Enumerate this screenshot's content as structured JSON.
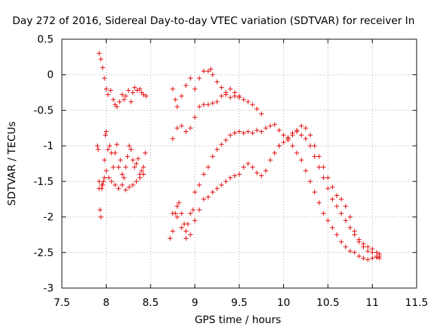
{
  "chart_data": {
    "type": "scatter",
    "title": "Day 272 of 2016, Sidereal Day-to-day VTEC variation (SDTVAR) for receiver In",
    "xlabel": "GPS time / hours",
    "ylabel": "SDTVAR / TECUs",
    "xlim": [
      7.5,
      11.5
    ],
    "ylim": [
      -3,
      0.5
    ],
    "xticks": [
      "7.5",
      "8",
      "8.5",
      "9",
      "9.5",
      "10",
      "10.5",
      "11",
      "11.5"
    ],
    "yticks": [
      "0.5",
      "0",
      "-0.5",
      "-1",
      "-1.5",
      "-2",
      "-2.5",
      "-3"
    ],
    "grid": true,
    "marker": "+",
    "color": "#e00000",
    "series": [
      {
        "x": [
          7.92,
          7.94,
          7.96,
          7.98,
          8.0,
          8.02,
          8.05,
          8.08,
          8.1,
          8.12,
          8.15,
          8.18,
          8.2,
          8.22,
          8.25,
          8.28,
          8.3,
          8.32,
          8.35,
          8.38,
          8.4,
          8.42,
          8.45
        ],
        "y": [
          0.3,
          0.22,
          0.1,
          -0.05,
          -0.2,
          -0.28,
          -0.22,
          -0.35,
          -0.42,
          -0.45,
          -0.38,
          -0.28,
          -0.35,
          -0.3,
          -0.22,
          -0.38,
          -0.25,
          -0.18,
          -0.22,
          -0.2,
          -0.25,
          -0.28,
          -0.3
        ]
      },
      {
        "x": [
          7.9,
          7.91,
          7.92,
          7.93,
          7.94,
          7.95,
          7.96,
          7.97,
          7.98,
          7.99,
          8.0,
          8.02,
          8.04,
          8.06,
          8.08,
          8.1,
          8.12,
          8.14,
          8.16,
          8.18,
          8.2,
          8.22,
          8.24,
          8.26,
          8.28,
          8.3,
          8.32,
          8.34,
          8.36,
          8.38,
          8.4,
          8.42,
          8.44
        ],
        "y": [
          -1.0,
          -1.05,
          -1.5,
          -1.9,
          -2.0,
          -1.6,
          -1.55,
          -1.5,
          -1.2,
          -0.85,
          -0.8,
          -1.05,
          -1.0,
          -1.1,
          -1.3,
          -1.1,
          -0.98,
          -1.3,
          -1.2,
          -1.4,
          -1.45,
          -1.3,
          -1.15,
          -1.0,
          -1.05,
          -1.2,
          -1.3,
          -1.25,
          -1.18,
          -1.4,
          -1.35,
          -1.3,
          -1.1
        ]
      },
      {
        "x": [
          7.92,
          7.95,
          7.98,
          8.0,
          8.03,
          8.06,
          8.1,
          8.14,
          8.18,
          8.22,
          8.26,
          8.3,
          8.34,
          8.38,
          8.42
        ],
        "y": [
          -1.6,
          -1.55,
          -1.45,
          -1.35,
          -1.45,
          -1.5,
          -1.55,
          -1.6,
          -1.55,
          -1.62,
          -1.58,
          -1.55,
          -1.5,
          -1.45,
          -1.4
        ]
      },
      {
        "x": [
          8.75,
          8.78,
          8.8,
          8.85,
          8.9,
          8.95,
          9.0,
          9.05,
          9.1,
          9.15,
          9.18,
          9.2,
          9.25,
          9.3,
          9.35,
          9.4,
          9.45,
          9.5,
          9.55,
          9.6,
          9.65,
          9.7,
          9.75
        ],
        "y": [
          -0.2,
          -0.35,
          -0.45,
          -0.3,
          -0.15,
          -0.05,
          -0.2,
          -0.05,
          0.05,
          0.05,
          0.08,
          0.0,
          -0.1,
          -0.18,
          -0.25,
          -0.2,
          -0.3,
          -0.32,
          -0.35,
          -0.38,
          -0.42,
          -0.48,
          -0.55
        ]
      },
      {
        "x": [
          8.75,
          8.8,
          8.85,
          8.9,
          8.95,
          9.0,
          9.05,
          9.1,
          9.15,
          9.2,
          9.25,
          9.3,
          9.35,
          9.4,
          9.45,
          9.5
        ],
        "y": [
          -0.9,
          -0.75,
          -0.72,
          -0.8,
          -0.75,
          -0.6,
          -0.45,
          -0.42,
          -0.42,
          -0.4,
          -0.38,
          -0.3,
          -0.28,
          -0.32,
          -0.25,
          -0.3
        ]
      },
      {
        "x": [
          8.72,
          8.75,
          8.78,
          8.8,
          8.82,
          8.85,
          8.88,
          8.9,
          8.92,
          8.95,
          8.98,
          9.0,
          9.05,
          9.1,
          9.15,
          9.2,
          9.25,
          9.3,
          9.35,
          9.4,
          9.45,
          9.5,
          9.55,
          9.6,
          9.65,
          9.7,
          9.75,
          9.8,
          9.85,
          9.9,
          9.95,
          10.0,
          10.05,
          10.1,
          10.15,
          10.2,
          10.25,
          10.3,
          10.35,
          10.4,
          10.45,
          10.5,
          10.55,
          10.6,
          10.65,
          10.7,
          10.75,
          10.8,
          10.85,
          10.9,
          10.95,
          11.0,
          11.05,
          11.08
        ],
        "y": [
          -2.3,
          -2.2,
          -1.95,
          -1.85,
          -1.8,
          -1.95,
          -2.1,
          -2.2,
          -2.1,
          -1.95,
          -1.9,
          -1.65,
          -1.55,
          -1.4,
          -1.3,
          -1.15,
          -1.05,
          -0.98,
          -0.92,
          -0.85,
          -0.82,
          -0.8,
          -0.82,
          -0.8,
          -0.82,
          -0.78,
          -0.8,
          -0.75,
          -0.72,
          -0.7,
          -0.78,
          -0.85,
          -0.9,
          -1.0,
          -1.1,
          -1.2,
          -1.35,
          -1.5,
          -1.65,
          -1.8,
          -1.95,
          -2.05,
          -2.15,
          -2.25,
          -2.35,
          -2.42,
          -2.48,
          -2.5,
          -2.55,
          -2.58,
          -2.6,
          -2.58,
          -2.57,
          -2.55
        ]
      },
      {
        "x": [
          8.75,
          8.8,
          8.85,
          8.9,
          8.95,
          9.0,
          9.05,
          9.1,
          9.15,
          9.2,
          9.25,
          9.3,
          9.35,
          9.4,
          9.45,
          9.5,
          9.55,
          9.6,
          9.65,
          9.7,
          9.75,
          9.8,
          9.85,
          9.9,
          9.95,
          10.0,
          10.05,
          10.1,
          10.15,
          10.2,
          10.25,
          10.3,
          10.35,
          10.4,
          10.45,
          10.5,
          10.55,
          10.6,
          10.65,
          10.7,
          10.75,
          10.8,
          10.85,
          10.9,
          10.95,
          11.0,
          11.05,
          11.08
        ],
        "y": [
          -1.95,
          -2.0,
          -2.15,
          -2.3,
          -2.25,
          -2.05,
          -1.9,
          -1.75,
          -1.72,
          -1.65,
          -1.6,
          -1.55,
          -1.5,
          -1.45,
          -1.42,
          -1.4,
          -1.3,
          -1.25,
          -1.3,
          -1.38,
          -1.42,
          -1.35,
          -1.2,
          -1.1,
          -1.0,
          -0.95,
          -0.92,
          -0.85,
          -0.8,
          -0.85,
          -0.9,
          -1.0,
          -1.15,
          -1.3,
          -1.45,
          -1.6,
          -1.75,
          -1.85,
          -1.95,
          -2.05,
          -2.15,
          -2.25,
          -2.32,
          -2.38,
          -2.42,
          -2.45,
          -2.5,
          -2.52
        ]
      },
      {
        "x": [
          9.95,
          10.0,
          10.05,
          10.1,
          10.15,
          10.2,
          10.25,
          10.3,
          10.35,
          10.4,
          10.45,
          10.5,
          10.55,
          10.6,
          10.65,
          10.7,
          10.75,
          10.8,
          10.85,
          10.9,
          10.95,
          11.0,
          11.05,
          11.08
        ],
        "y": [
          -1.0,
          -0.95,
          -0.88,
          -0.82,
          -0.78,
          -0.72,
          -0.75,
          -0.85,
          -1.0,
          -1.15,
          -1.3,
          -1.45,
          -1.58,
          -1.7,
          -1.75,
          -1.85,
          -2.0,
          -2.2,
          -2.35,
          -2.42,
          -2.48,
          -2.5,
          -2.55,
          -2.58
        ]
      }
    ]
  }
}
